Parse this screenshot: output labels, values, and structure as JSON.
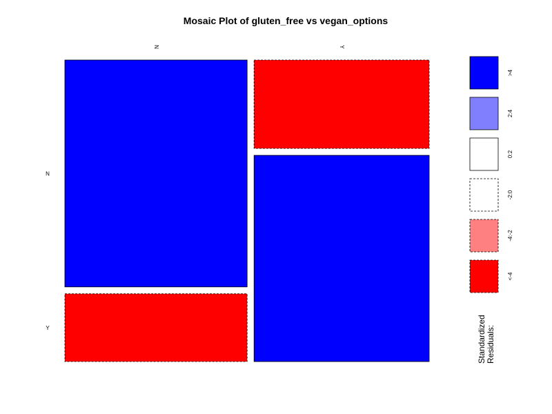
{
  "chart_data": {
    "type": "mosaic",
    "title": "Mosaic Plot of gluten_free vs vegan_options",
    "column_variable_levels": [
      "N",
      "Y"
    ],
    "row_variable_levels": [
      "N",
      "Y"
    ],
    "column_proportions": [
      0.51,
      0.49
    ],
    "cells": [
      {
        "column": "N",
        "row": "N",
        "proportion_within_column": 0.77,
        "residual_class": ">4",
        "color": "#0000FF"
      },
      {
        "column": "N",
        "row": "Y",
        "proportion_within_column": 0.23,
        "residual_class": "<-4",
        "color": "#FF0000"
      },
      {
        "column": "Y",
        "row": "N",
        "proportion_within_column": 0.3,
        "residual_class": "<-4",
        "color": "#FF0000"
      },
      {
        "column": "Y",
        "row": "Y",
        "proportion_within_column": 0.7,
        "residual_class": ">4",
        "color": "#0000FF"
      }
    ],
    "legend": {
      "title_lines": [
        "Standardized",
        "Residuals:"
      ],
      "entries": [
        {
          "label": ">4",
          "color": "#0000FF",
          "border": "solid"
        },
        {
          "label": "2:4",
          "color": "#8080FF",
          "border": "solid"
        },
        {
          "label": "0:2",
          "color": "#FFFFFF",
          "border": "solid"
        },
        {
          "label": "-2:0",
          "color": "#FFFFFF",
          "border": "dashed"
        },
        {
          "label": "-4:-2",
          "color": "#FF8080",
          "border": "dashed"
        },
        {
          "label": "<-4",
          "color": "#FF0000",
          "border": "dashed"
        }
      ]
    }
  }
}
